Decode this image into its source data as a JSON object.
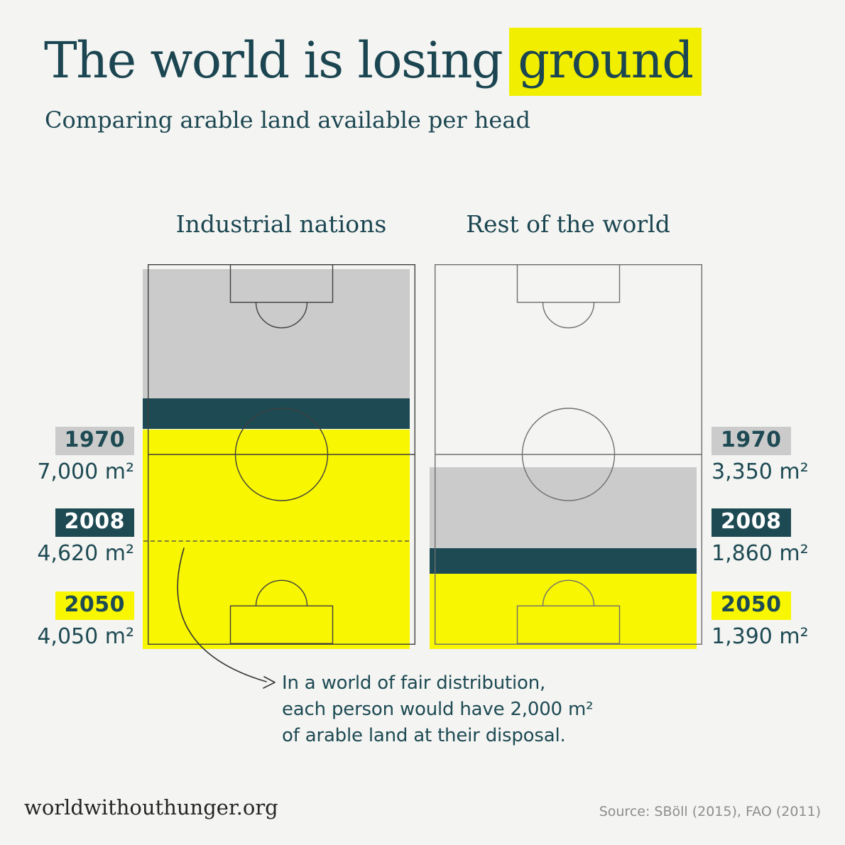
{
  "header": {
    "title_prefix": "The world is losing",
    "title_highlight": "ground",
    "subtitle": "Comparing arable land available per head"
  },
  "footer": {
    "site": "worldwithouthunger.org",
    "source": "Source: SBöll (2015),  FAO (2011)"
  },
  "colors": {
    "background": "#f4f4f2",
    "heading_text": "#1b4651",
    "highlight_bg": "#f2ee00",
    "band_gray": "#cbcbcb",
    "band_teal": "#1d4a53",
    "band_yellow": "#f8f600",
    "value_text": "#1d4a53",
    "source_text": "#8d8d8d",
    "site_text": "#262626"
  },
  "chart_data": {
    "type": "bar",
    "subtype": "pictorial-football-pitch",
    "unit": "m²",
    "pitch_full_value": 7000,
    "categories": [
      "1970",
      "2008",
      "2050"
    ],
    "palette": {
      "1970": {
        "bg": "#cbcbcb",
        "text": "#1d4a53"
      },
      "2008": {
        "bg": "#1d4a53",
        "text": "#ffffff"
      },
      "2050": {
        "bg": "#f8f600",
        "text": "#1d4a53"
      }
    },
    "groups": [
      {
        "name": "Industrial nations",
        "labels_side": "left",
        "show_fair_line": true,
        "values": [
          7000,
          4620,
          4050
        ],
        "value_labels": [
          "7,000 m²",
          "4,620 m²",
          "4,050 m²"
        ]
      },
      {
        "name": "Rest of the world",
        "labels_side": "right",
        "show_fair_line": false,
        "values": [
          3350,
          1860,
          1390
        ],
        "value_labels": [
          "3,350 m²",
          "1,860 m²",
          "1,390 m²"
        ]
      }
    ],
    "fair_distribution": {
      "value": 2000,
      "lines": [
        "In a world of fair distribution,",
        "each person would have 2,000 m²",
        "of arable land at their disposal."
      ]
    }
  }
}
